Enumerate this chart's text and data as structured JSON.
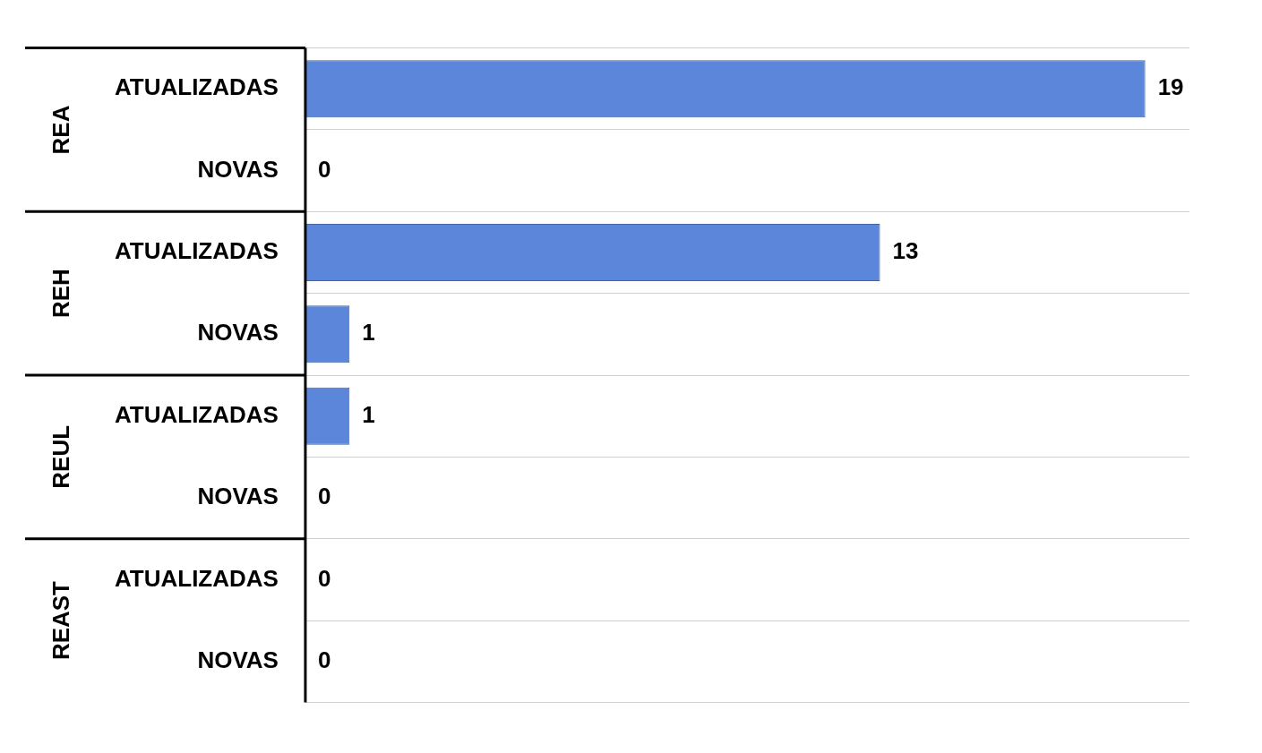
{
  "chart_data": {
    "type": "bar",
    "orientation": "horizontal",
    "categories": [
      "ATUALIZADAS",
      "NOVAS",
      "ATUALIZADAS",
      "NOVAS",
      "ATUALIZADAS",
      "NOVAS",
      "ATUALIZADAS",
      "NOVAS"
    ],
    "values": [
      19,
      0,
      13,
      1,
      1,
      0,
      0,
      0
    ],
    "color": "#5b86d9",
    "annotations": [
      "REA",
      "REH",
      "REUL",
      "REAST"
    ],
    "data_labels": true,
    "grid": "y",
    "legend": false
  }
}
